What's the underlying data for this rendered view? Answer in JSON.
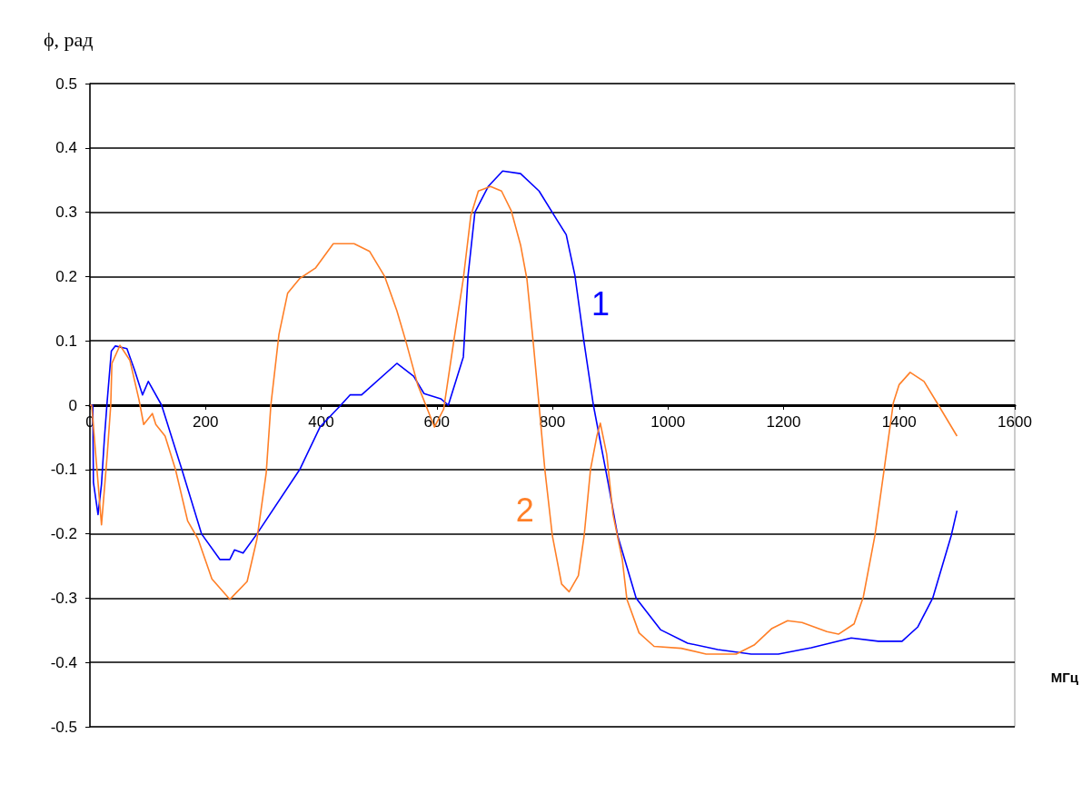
{
  "chart_data": {
    "type": "line",
    "ylabel": "ϕ, рад",
    "xlabel": "МГц",
    "xlim": [
      0,
      1600
    ],
    "xticks": [
      0,
      200,
      400,
      600,
      800,
      1000,
      1200,
      1400,
      1600
    ],
    "ylim": [
      -0.5,
      0.5
    ],
    "yticks": [
      -0.5,
      -0.4,
      -0.3,
      -0.2,
      -0.1,
      0,
      0.1,
      0.2,
      0.3,
      0.4,
      0.5
    ],
    "grid": "y",
    "legend": false,
    "marker": "none",
    "line_style": "solid",
    "series": [
      {
        "name": "1",
        "color": "#0000ff",
        "x": [
          0,
          5,
          6,
          14,
          20,
          25,
          30,
          37,
          44,
          64,
          77,
          91,
          101,
          124,
          159,
          193,
          225,
          242,
          250,
          265,
          289,
          363,
          398,
          434,
          450,
          470,
          531,
          560,
          578,
          607,
          620,
          646,
          654,
          666,
          689,
          714,
          745,
          777,
          808,
          824,
          839,
          855,
          871,
          897,
          913,
          945,
          987,
          1034,
          1086,
          1144,
          1191,
          1248,
          1317,
          1364,
          1405,
          1432,
          1458,
          1490,
          1500
        ],
        "values": [
          0,
          0,
          -0.12,
          -0.17,
          -0.123,
          -0.052,
          0.008,
          0.084,
          0.092,
          0.088,
          0.055,
          0.016,
          0.037,
          0,
          -0.1,
          -0.2,
          -0.24,
          -0.24,
          -0.225,
          -0.23,
          -0.2,
          -0.1,
          -0.034,
          0,
          0.016,
          0.016,
          0.065,
          0.045,
          0.018,
          0.01,
          0,
          0.075,
          0.2,
          0.3,
          0.34,
          0.364,
          0.36,
          0.333,
          0.288,
          0.265,
          0.202,
          0.097,
          0,
          -0.123,
          -0.203,
          -0.3,
          -0.349,
          -0.37,
          -0.38,
          -0.387,
          -0.387,
          -0.377,
          -0.362,
          -0.367,
          -0.367,
          -0.345,
          -0.3,
          -0.203,
          -0.164
        ]
      },
      {
        "name": "2",
        "color": "#ff7f27",
        "x": [
          0,
          3,
          20,
          30,
          36,
          38,
          52,
          69,
          85,
          93,
          108,
          114,
          130,
          148,
          169,
          187,
          211,
          242,
          272,
          289,
          305,
          313,
          327,
          342,
          363,
          390,
          421,
          457,
          484,
          510,
          531,
          547,
          567,
          596,
          612,
          630,
          646,
          659,
          672,
          693,
          712,
          729,
          745,
          756,
          767,
          777,
          787,
          800,
          816,
          829,
          845,
          855,
          866,
          877,
          883,
          894,
          905,
          921,
          929,
          950,
          976,
          1023,
          1066,
          1118,
          1149,
          1180,
          1207,
          1232,
          1275,
          1295,
          1322,
          1338,
          1358,
          1374,
          1390,
          1400,
          1419,
          1443,
          1468,
          1500
        ],
        "values": [
          0,
          0,
          -0.186,
          -0.076,
          0,
          0.065,
          0.093,
          0.07,
          0.008,
          -0.03,
          -0.013,
          -0.03,
          -0.048,
          -0.1,
          -0.18,
          -0.208,
          -0.27,
          -0.302,
          -0.274,
          -0.208,
          -0.105,
          0,
          0.11,
          0.174,
          0.197,
          0.213,
          0.251,
          0.251,
          0.239,
          0.2,
          0.147,
          0.098,
          0.032,
          -0.034,
          -0.006,
          0.103,
          0.197,
          0.295,
          0.333,
          0.34,
          0.333,
          0.302,
          0.249,
          0.196,
          0.097,
          0,
          -0.1,
          -0.203,
          -0.278,
          -0.29,
          -0.265,
          -0.203,
          -0.1,
          -0.048,
          -0.028,
          -0.076,
          -0.17,
          -0.24,
          -0.302,
          -0.354,
          -0.375,
          -0.378,
          -0.387,
          -0.387,
          -0.373,
          -0.347,
          -0.335,
          -0.338,
          -0.352,
          -0.356,
          -0.34,
          -0.298,
          -0.203,
          -0.1,
          0.004,
          0.032,
          0.051,
          0.037,
          0,
          -0.048
        ]
      }
    ]
  }
}
